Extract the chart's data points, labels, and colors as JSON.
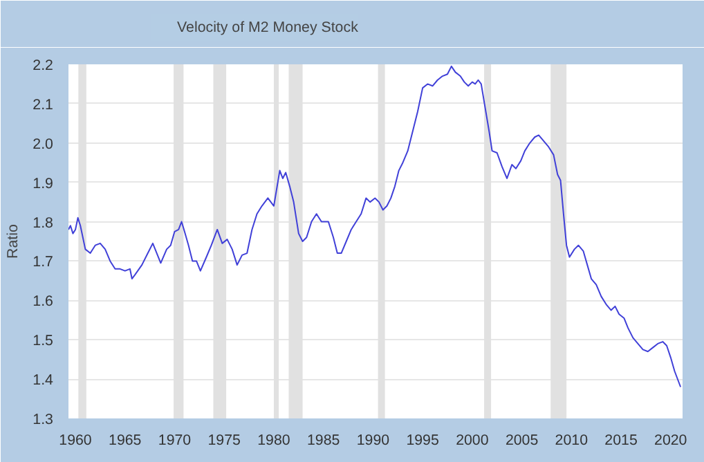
{
  "chart_data": {
    "type": "line",
    "ylabel": "Ratio",
    "legend": "top left",
    "grid": "y",
    "xlim": [
      1959.3,
      2021.2
    ],
    "ylim": [
      1.3,
      2.2
    ],
    "xticks": [
      1960,
      1965,
      1970,
      1975,
      1980,
      1985,
      1990,
      1995,
      2000,
      2005,
      2010,
      2015,
      2020
    ],
    "yticks": [
      1.3,
      1.4,
      1.5,
      1.6,
      1.7,
      1.8,
      1.9,
      {
        "value": 2.0,
        "label": "2.0"
      },
      2.1,
      2.2
    ],
    "bands": [
      {
        "axis": "x",
        "from": 1960.3,
        "to": 1961.1,
        "color": "#e1e1e1"
      },
      {
        "axis": "x",
        "from": 1969.9,
        "to": 1970.9,
        "color": "#e1e1e1"
      },
      {
        "axis": "x",
        "from": 1973.9,
        "to": 1975.2,
        "color": "#e1e1e1"
      },
      {
        "axis": "x",
        "from": 1980.0,
        "to": 1980.5,
        "color": "#e1e1e1"
      },
      {
        "axis": "x",
        "from": 1981.5,
        "to": 1982.9,
        "color": "#e1e1e1"
      },
      {
        "axis": "x",
        "from": 1990.5,
        "to": 1991.2,
        "color": "#e1e1e1"
      },
      {
        "axis": "x",
        "from": 2001.2,
        "to": 2001.9,
        "color": "#e1e1e1"
      },
      {
        "axis": "x",
        "from": 2007.9,
        "to": 2009.5,
        "color": "#e1e1e1"
      }
    ],
    "series": [
      {
        "name": "Velocity of M2 Money Stock",
        "color": "#4040d8",
        "x": [
          1959.3,
          1959.5,
          1959.75,
          1960.0,
          1960.25,
          1960.5,
          1960.75,
          1961,
          1961.5,
          1962,
          1962.5,
          1963,
          1963.5,
          1964,
          1964.5,
          1965,
          1965.5,
          1965.7,
          1966,
          1966.7,
          1967.3,
          1967.8,
          1968.2,
          1968.6,
          1969.2,
          1969.6,
          1970,
          1970.4,
          1970.7,
          1971,
          1971.4,
          1971.8,
          1972.2,
          1972.6,
          1973.2,
          1973.7,
          1974.3,
          1974.8,
          1975.3,
          1975.8,
          1976.3,
          1976.8,
          1977.3,
          1977.8,
          1978.3,
          1978.8,
          1979.4,
          1980,
          1980.6,
          1980.9,
          1981.2,
          1981.6,
          1982,
          1982.5,
          1982.9,
          1983.3,
          1983.8,
          1984.3,
          1984.8,
          1985.5,
          1986,
          1986.4,
          1986.8,
          1987.3,
          1987.8,
          1988.3,
          1988.8,
          1989.3,
          1989.7,
          1990.2,
          1990.6,
          1991,
          1991.4,
          1991.8,
          1992.2,
          1992.6,
          1993,
          1993.5,
          1994,
          1994.5,
          1995,
          1995.5,
          1996,
          1996.5,
          1997,
          1997.5,
          1997.9,
          1998.3,
          1998.8,
          1999.2,
          1999.6,
          2000,
          2000.3,
          2000.6,
          2000.9,
          2001.3,
          2001.7,
          2002,
          2002.5,
          2003,
          2003.5,
          2004,
          2004.4,
          2004.9,
          2005.3,
          2005.8,
          2006.3,
          2006.7,
          2007.2,
          2007.7,
          2008.2,
          2008.6,
          2008.9,
          2009.2,
          2009.5,
          2009.8,
          2010.3,
          2010.7,
          2011.2,
          2011.6,
          2012,
          2012.5,
          2013,
          2013.5,
          2014,
          2014.4,
          2014.8,
          2015.3,
          2015.7,
          2016.2,
          2016.7,
          2017.2,
          2017.7,
          2018.2,
          2018.7,
          2019.2,
          2019.6,
          2020,
          2020.4,
          2021.0
        ],
        "values": [
          1.78,
          1.79,
          1.77,
          1.78,
          1.81,
          1.79,
          1.76,
          1.73,
          1.72,
          1.74,
          1.745,
          1.73,
          1.7,
          1.68,
          1.68,
          1.675,
          1.68,
          1.655,
          1.665,
          1.69,
          1.72,
          1.745,
          1.72,
          1.695,
          1.73,
          1.74,
          1.775,
          1.78,
          1.8,
          1.775,
          1.74,
          1.7,
          1.7,
          1.675,
          1.71,
          1.74,
          1.78,
          1.745,
          1.755,
          1.73,
          1.69,
          1.715,
          1.72,
          1.78,
          1.82,
          1.84,
          1.86,
          1.84,
          1.93,
          1.91,
          1.925,
          1.89,
          1.85,
          1.77,
          1.75,
          1.76,
          1.8,
          1.82,
          1.8,
          1.8,
          1.76,
          1.72,
          1.72,
          1.75,
          1.78,
          1.8,
          1.82,
          1.86,
          1.85,
          1.86,
          1.85,
          1.83,
          1.84,
          1.86,
          1.89,
          1.93,
          1.95,
          1.98,
          2.03,
          2.08,
          2.14,
          2.15,
          2.145,
          2.16,
          2.17,
          2.175,
          2.195,
          2.18,
          2.17,
          2.155,
          2.145,
          2.155,
          2.15,
          2.16,
          2.15,
          2.09,
          2.03,
          1.98,
          1.975,
          1.94,
          1.91,
          1.945,
          1.935,
          1.955,
          1.98,
          2.0,
          2.015,
          2.02,
          2.005,
          1.99,
          1.97,
          1.92,
          1.905,
          1.82,
          1.74,
          1.71,
          1.73,
          1.74,
          1.725,
          1.69,
          1.655,
          1.64,
          1.61,
          1.59,
          1.575,
          1.585,
          1.565,
          1.555,
          1.53,
          1.505,
          1.49,
          1.475,
          1.47,
          1.48,
          1.49,
          1.495,
          1.485,
          1.455,
          1.42,
          1.38
        ]
      }
    ]
  }
}
